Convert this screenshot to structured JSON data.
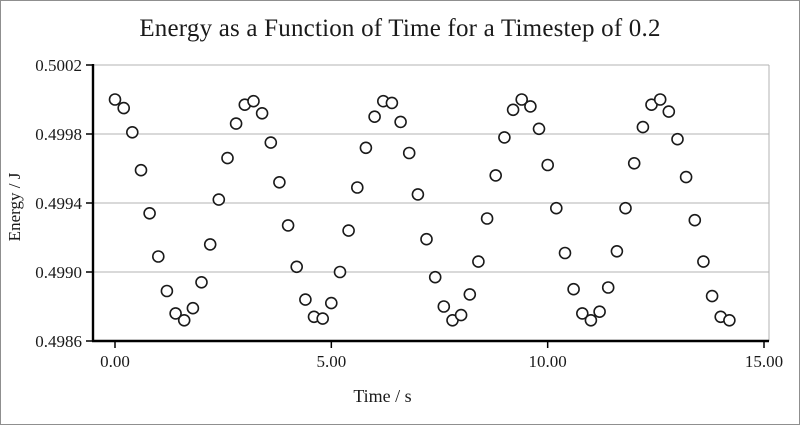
{
  "figure": {
    "background": "#ffffff",
    "border_color": "#8f8f8f"
  },
  "chart_data": {
    "type": "scatter",
    "title": "Energy as a Function of Time for a Timestep of 0.2",
    "xlabel": "Time / s",
    "ylabel": "Energy / J",
    "xlim": [
      0,
      15
    ],
    "ylim": [
      0.4986,
      0.5002
    ],
    "x_ticks": [
      0,
      5,
      10,
      15
    ],
    "x_tick_labels": [
      "0.00",
      "5.00",
      "10.00",
      "15.00"
    ],
    "y_ticks": [
      0.4986,
      0.499,
      0.4994,
      0.4998,
      0.5002
    ],
    "y_tick_labels": [
      "0.4986",
      "0.4990",
      "0.4994",
      "0.4998",
      "0.5002"
    ],
    "grid": "horizontal",
    "legend": "none",
    "marker": {
      "shape": "open-circle",
      "fill": "#ffffff",
      "stroke": "#1a1a1a",
      "radius": 5.5,
      "stroke_width": 1.6
    },
    "colors": {
      "gridline": "#b3b3b3",
      "axis": "#000000",
      "frame": "#b3b3b3"
    },
    "x": [
      0.0,
      0.2,
      0.4,
      0.6,
      0.8,
      1.0,
      1.2,
      1.4,
      1.6,
      1.8,
      2.0,
      2.2,
      2.4,
      2.6,
      2.8,
      3.0,
      3.2,
      3.4,
      3.6,
      3.8,
      4.0,
      4.2,
      4.4,
      4.6,
      4.8,
      5.0,
      5.2,
      5.4,
      5.6,
      5.8,
      6.0,
      6.2,
      6.4,
      6.6,
      6.8,
      7.0,
      7.2,
      7.4,
      7.6,
      7.8,
      8.0,
      8.2,
      8.4,
      8.6,
      8.8,
      9.0,
      9.2,
      9.4,
      9.6,
      9.8,
      10.0,
      10.2,
      10.4,
      10.6,
      10.8,
      11.0,
      11.2,
      11.4,
      11.6,
      11.8,
      12.0,
      12.2,
      12.4,
      12.6,
      12.8,
      13.0,
      13.2,
      13.4,
      13.6,
      13.8,
      14.0,
      14.2
    ],
    "y": [
      0.5,
      0.49995,
      0.49981,
      0.49959,
      0.49934,
      0.49909,
      0.49889,
      0.49876,
      0.49872,
      0.49879,
      0.49894,
      0.49916,
      0.49942,
      0.49966,
      0.49986,
      0.49997,
      0.49999,
      0.49992,
      0.49975,
      0.49952,
      0.49927,
      0.49903,
      0.49884,
      0.49874,
      0.49873,
      0.49882,
      0.499,
      0.49924,
      0.49949,
      0.49972,
      0.4999,
      0.49999,
      0.49998,
      0.49987,
      0.49969,
      0.49945,
      0.49919,
      0.49897,
      0.4988,
      0.49872,
      0.49875,
      0.49887,
      0.49906,
      0.49931,
      0.49956,
      0.49978,
      0.49994,
      0.5,
      0.49996,
      0.49983,
      0.49962,
      0.49937,
      0.49911,
      0.4989,
      0.49876,
      0.49872,
      0.49877,
      0.49891,
      0.49912,
      0.49937,
      0.49963,
      0.49984,
      0.49997,
      0.5,
      0.49993,
      0.49977,
      0.49955,
      0.4993,
      0.49906,
      0.49886,
      0.49874,
      0.49872
    ]
  }
}
